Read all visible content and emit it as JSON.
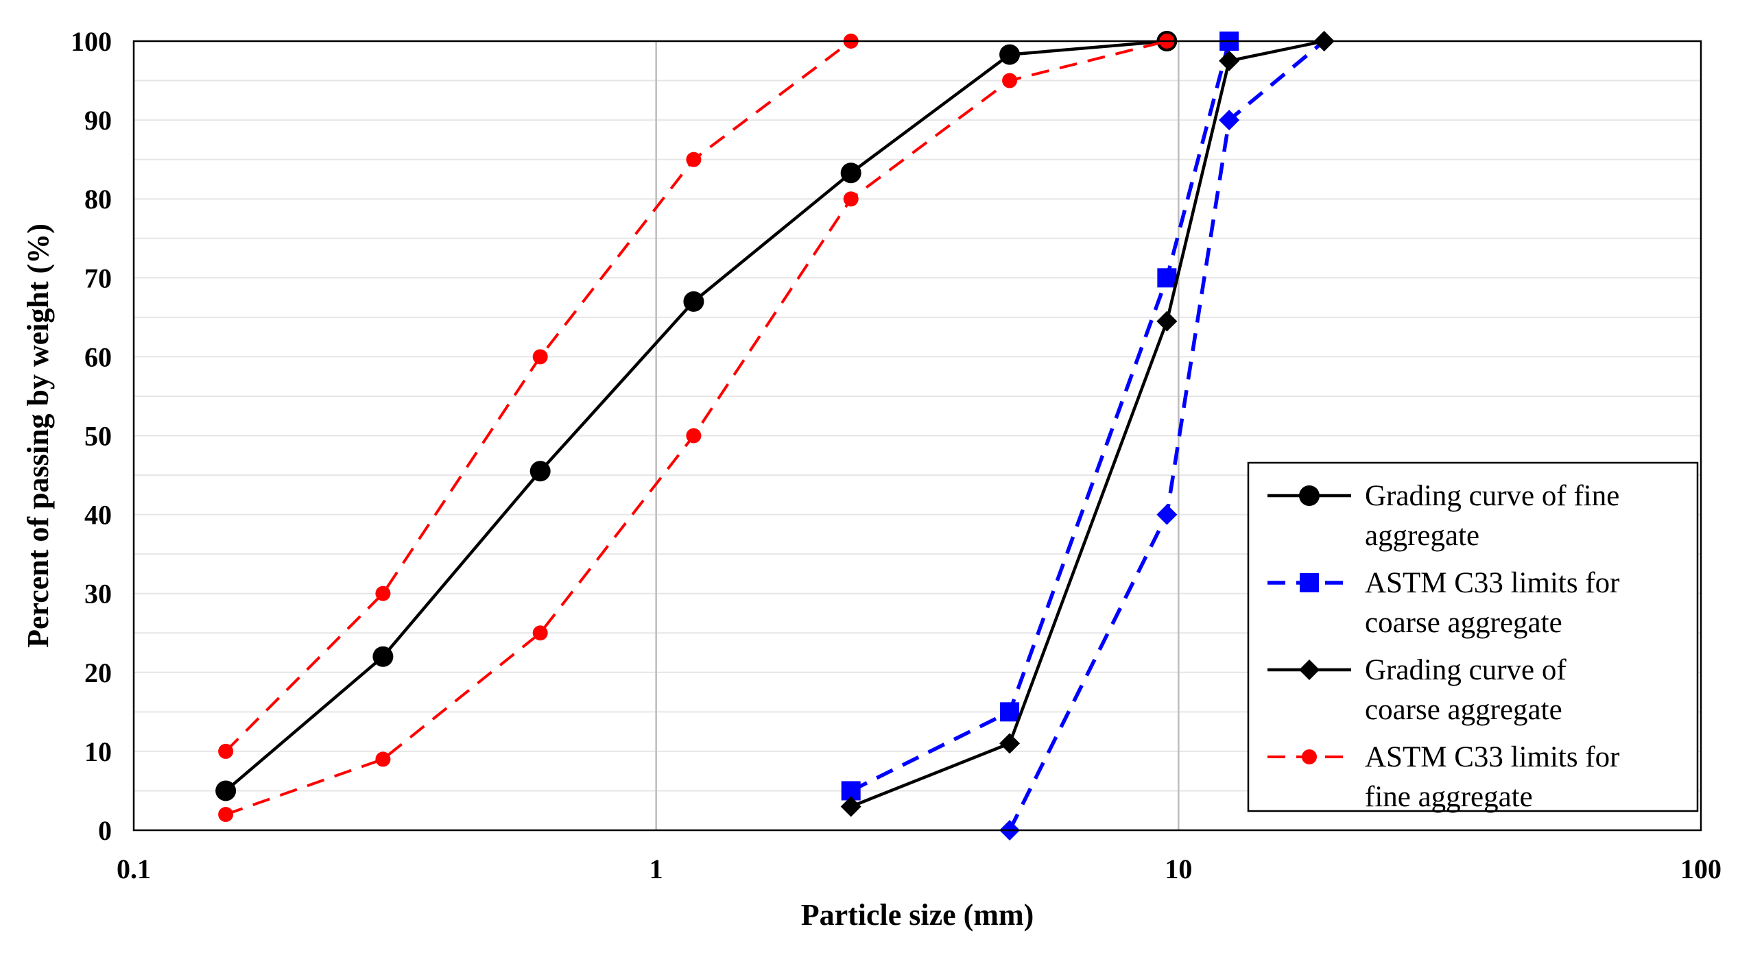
{
  "chart_data": {
    "type": "line",
    "title": "",
    "xlabel": "Particle size (mm)",
    "ylabel": "Percent of passing by weight (%)",
    "xscale": "log",
    "xlim": [
      0.1,
      100
    ],
    "ylim": [
      0,
      100
    ],
    "xticks": [
      0.1,
      1,
      10,
      100
    ],
    "xtick_labels": [
      "0.1",
      "1",
      "10",
      "100"
    ],
    "yticks": [
      0,
      10,
      20,
      30,
      40,
      50,
      60,
      70,
      80,
      90,
      100
    ],
    "ytick_labels": [
      "0",
      "10",
      "20",
      "30",
      "40",
      "50",
      "60",
      "70",
      "80",
      "90",
      "100"
    ],
    "grid": "vertical major and horizontal minor gridlines",
    "legend_position": "lower-right",
    "series": [
      {
        "name": "Grading curve of fine aggregate",
        "legend_lines": [
          "Grading curve of fine",
          "aggregate"
        ],
        "color": "#000000",
        "line": "solid",
        "marker": "circle",
        "x": [
          0.15,
          0.3,
          0.6,
          1.18,
          2.36,
          4.75,
          9.5
        ],
        "y": [
          5,
          22,
          45.5,
          67,
          83.3,
          98.3,
          100
        ]
      },
      {
        "name": "ASTM C33 limits for fine aggregate (lower)",
        "legend_lines": [
          "ASTM C33 limits for",
          "fine aggregate"
        ],
        "color": "#ff0000",
        "line": "dashed",
        "marker": "small-circle",
        "x": [
          0.15,
          0.3,
          0.6,
          1.18,
          2.36,
          4.75,
          9.5
        ],
        "y": [
          2,
          9,
          25,
          50,
          80,
          95,
          100
        ]
      },
      {
        "name": "ASTM C33 limits for fine aggregate (upper)",
        "legend_lines": [],
        "color": "#ff0000",
        "line": "dashed",
        "marker": "small-circle",
        "x": [
          0.15,
          0.3,
          0.6,
          1.18,
          2.36
        ],
        "y": [
          10,
          30,
          60,
          85,
          100
        ]
      },
      {
        "name": "ASTM C33 limits for coarse aggregate (upper)",
        "legend_lines": [
          "ASTM C33 limits for",
          "coarse aggregate"
        ],
        "color": "#0000ff",
        "line": "dashed",
        "marker": "square",
        "x": [
          2.36,
          4.75,
          9.5,
          12.5
        ],
        "y": [
          5,
          15,
          70,
          100
        ]
      },
      {
        "name": "ASTM C33 limits for coarse aggregate (lower)",
        "legend_lines": [],
        "color": "#0000ff",
        "line": "dashed",
        "marker": "diamond",
        "x": [
          4.75,
          9.5,
          12.5,
          19
        ],
        "y": [
          0,
          40,
          90,
          100
        ]
      },
      {
        "name": "Grading curve of coarse aggregate",
        "legend_lines": [
          "Grading curve of",
          "coarse aggregate"
        ],
        "color": "#000000",
        "line": "solid",
        "marker": "diamond",
        "x": [
          2.36,
          4.75,
          9.5,
          12.5,
          19
        ],
        "y": [
          3,
          11,
          64.5,
          97.5,
          100
        ]
      }
    ],
    "legend_order": [
      "Grading curve of fine aggregate",
      "ASTM C33 limits for coarse aggregate (upper)",
      "Grading curve of coarse aggregate",
      "ASTM C33 limits for fine aggregate (lower)"
    ]
  }
}
